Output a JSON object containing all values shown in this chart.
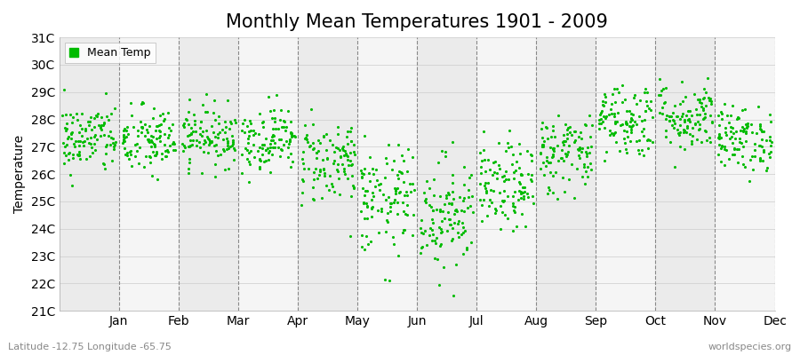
{
  "title": "Monthly Mean Temperatures 1901 - 2009",
  "ylabel": "Temperature",
  "xlabel_bottom_left": "Latitude -12.75 Longitude -65.75",
  "xlabel_bottom_right": "worldspecies.org",
  "ylim": [
    21,
    31
  ],
  "ytick_labels": [
    "21C",
    "22C",
    "23C",
    "24C",
    "25C",
    "26C",
    "27C",
    "28C",
    "29C",
    "30C",
    "31C"
  ],
  "months": [
    "Jan",
    "Feb",
    "Mar",
    "Apr",
    "May",
    "Jun",
    "Jul",
    "Aug",
    "Sep",
    "Oct",
    "Nov",
    "Dec"
  ],
  "dot_color": "#00bb00",
  "background_color": "#ffffff",
  "band_color_even": "#ebebeb",
  "band_color_odd": "#f5f5f5",
  "n_years": 109,
  "monthly_means": [
    27.3,
    27.2,
    27.4,
    27.3,
    26.5,
    25.0,
    24.6,
    25.5,
    26.8,
    28.0,
    28.1,
    27.3
  ],
  "monthly_stds": [
    0.65,
    0.65,
    0.55,
    0.6,
    0.8,
    1.0,
    1.05,
    0.8,
    0.75,
    0.7,
    0.65,
    0.6
  ],
  "title_fontsize": 15,
  "axis_fontsize": 10,
  "legend_fontsize": 9,
  "dot_size": 5,
  "seed": 42
}
